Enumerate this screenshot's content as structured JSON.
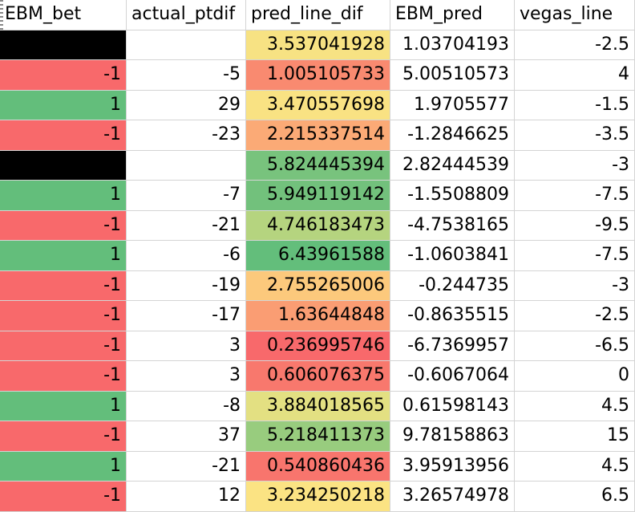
{
  "headers": [
    "EBM_bet",
    "actual_ptdif",
    "pred_line_dif",
    "EBM_pred",
    "vegas_line"
  ],
  "colors": {
    "black": "#000000",
    "red": "#f8696b",
    "green": "#63be7b",
    "grid": "#d4d4d4"
  },
  "rows": [
    {
      "bet": "",
      "bet_color": "#000000",
      "actual": "",
      "pred": "3.537041928",
      "pred_color": "#f7e283",
      "ebm": "1.03704193",
      "vegas": "-2.5"
    },
    {
      "bet": "-1",
      "bet_color": "#f8696b",
      "actual": "-5",
      "pred": "1.005105733",
      "pred_color": "#f98a70",
      "ebm": "5.00510573",
      "vegas": "4"
    },
    {
      "bet": "1",
      "bet_color": "#63be7b",
      "actual": "29",
      "pred": "3.470557698",
      "pred_color": "#f9e283",
      "ebm": "1.9705577",
      "vegas": "-1.5"
    },
    {
      "bet": "-1",
      "bet_color": "#f8696b",
      "actual": "-23",
      "pred": "2.215337514",
      "pred_color": "#fbaa76",
      "ebm": "-1.2846625",
      "vegas": "-3.5"
    },
    {
      "bet": "",
      "bet_color": "#000000",
      "actual": "",
      "pred": "5.824445394",
      "pred_color": "#78c37d",
      "ebm": "2.82444539",
      "vegas": "-3"
    },
    {
      "bet": "1",
      "bet_color": "#63be7b",
      "actual": "-7",
      "pred": "5.949119142",
      "pred_color": "#72c17c",
      "ebm": "-1.5508809",
      "vegas": "-7.5"
    },
    {
      "bet": "-1",
      "bet_color": "#f8696b",
      "actual": "-21",
      "pred": "4.746183473",
      "pred_color": "#b5d47f",
      "ebm": "-4.7538165",
      "vegas": "-9.5"
    },
    {
      "bet": "1",
      "bet_color": "#63be7b",
      "actual": "-6",
      "pred": "6.43961588",
      "pred_color": "#63be7b",
      "ebm": "-1.0603841",
      "vegas": "-7.5"
    },
    {
      "bet": "-1",
      "bet_color": "#f8696b",
      "actual": "-19",
      "pred": "2.755265006",
      "pred_color": "#fcc97c",
      "ebm": "-0.244735",
      "vegas": "-3"
    },
    {
      "bet": "-1",
      "bet_color": "#f8696b",
      "actual": "-17",
      "pred": "1.63644848",
      "pred_color": "#fa9d73",
      "ebm": "-0.8635515",
      "vegas": "-2.5"
    },
    {
      "bet": "-1",
      "bet_color": "#f8696b",
      "actual": "3",
      "pred": "0.236995746",
      "pred_color": "#f8696b",
      "ebm": "-6.7369957",
      "vegas": "-6.5"
    },
    {
      "bet": "-1",
      "bet_color": "#f8696b",
      "actual": "3",
      "pred": "0.606076375",
      "pred_color": "#f8786d",
      "ebm": "-0.6067064",
      "vegas": "0"
    },
    {
      "bet": "1",
      "bet_color": "#63be7b",
      "actual": "-8",
      "pred": "3.884018565",
      "pred_color": "#e3e082",
      "ebm": "0.61598143",
      "vegas": "4.5"
    },
    {
      "bet": "-1",
      "bet_color": "#f8696b",
      "actual": "37",
      "pred": "5.218411373",
      "pred_color": "#98cc7e",
      "ebm": "9.78158863",
      "vegas": "15"
    },
    {
      "bet": "1",
      "bet_color": "#63be7b",
      "actual": "-21",
      "pred": "0.540860436",
      "pred_color": "#f8756d",
      "ebm": "3.95913956",
      "vegas": "4.5"
    },
    {
      "bet": "-1",
      "bet_color": "#f8696b",
      "actual": "12",
      "pred": "3.234250218",
      "pred_color": "#fbe383",
      "ebm": "3.26574978",
      "vegas": "6.5"
    }
  ]
}
